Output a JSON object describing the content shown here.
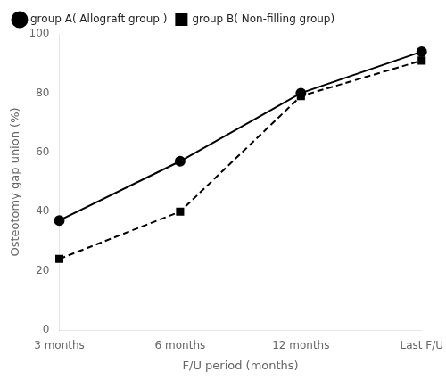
{
  "chart_data": {
    "type": "line",
    "categories": [
      "3 months",
      "6 months",
      "12 months",
      "Last F/U"
    ],
    "series": [
      {
        "name": "group A( Allograft group )",
        "color": "#000000",
        "marker": "circle",
        "line_style": "solid",
        "values": [
          37,
          57,
          80,
          94
        ]
      },
      {
        "name": "group B( Non-filling group)",
        "color": "#000000",
        "marker": "square",
        "line_style": "dashed",
        "values": [
          24,
          40,
          79,
          91
        ]
      }
    ],
    "xlabel": "F/U period (months)",
    "ylabel": "Osteotomy gap union (%)",
    "ylim": [
      0,
      100
    ],
    "yticks": [
      0,
      20,
      40,
      60,
      80,
      100
    ],
    "grid": false,
    "legend": "top"
  }
}
